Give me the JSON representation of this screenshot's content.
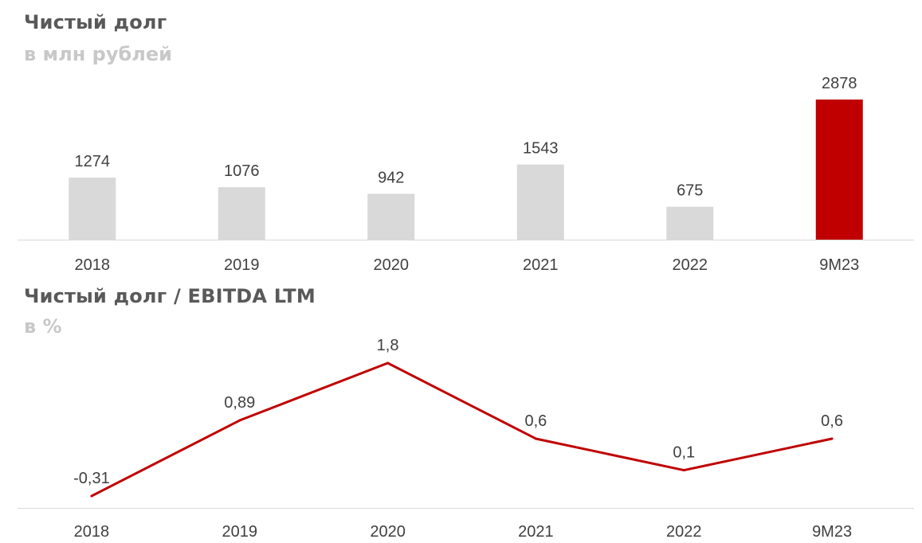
{
  "chart_data": [
    {
      "type": "bar",
      "title": "Чистый долг",
      "subtitle": "в млн рублей",
      "categories": [
        "2018",
        "2019",
        "2020",
        "2021",
        "2022",
        "9M23"
      ],
      "values": [
        1274,
        1076,
        942,
        1543,
        675,
        2878
      ],
      "value_labels": [
        "1274",
        "1076",
        "942",
        "1543",
        "675",
        "2878"
      ],
      "bar_colors": [
        "#d9d9d9",
        "#d9d9d9",
        "#d9d9d9",
        "#d9d9d9",
        "#d9d9d9",
        "#c00000"
      ],
      "ylim": [
        0,
        2878
      ],
      "grid": false,
      "legend": "none"
    },
    {
      "type": "line",
      "title": "Чистый долг / EBITDA LTM",
      "subtitle": "в %",
      "categories": [
        "2018",
        "2019",
        "2020",
        "2021",
        "2022",
        "9M23"
      ],
      "values": [
        -0.31,
        0.89,
        1.8,
        0.6,
        0.1,
        0.6
      ],
      "value_labels": [
        "-0,31",
        "0,89",
        "1,8",
        "0,6",
        "0,1",
        "0,6"
      ],
      "line_color": "#c00000",
      "ylim": [
        -0.31,
        1.8
      ],
      "grid": false,
      "legend": "none"
    }
  ],
  "colors": {
    "title": "#595959",
    "subtitle": "#c8c8c8",
    "axis_line": "#d9d9d9",
    "label_text": "#404040"
  }
}
